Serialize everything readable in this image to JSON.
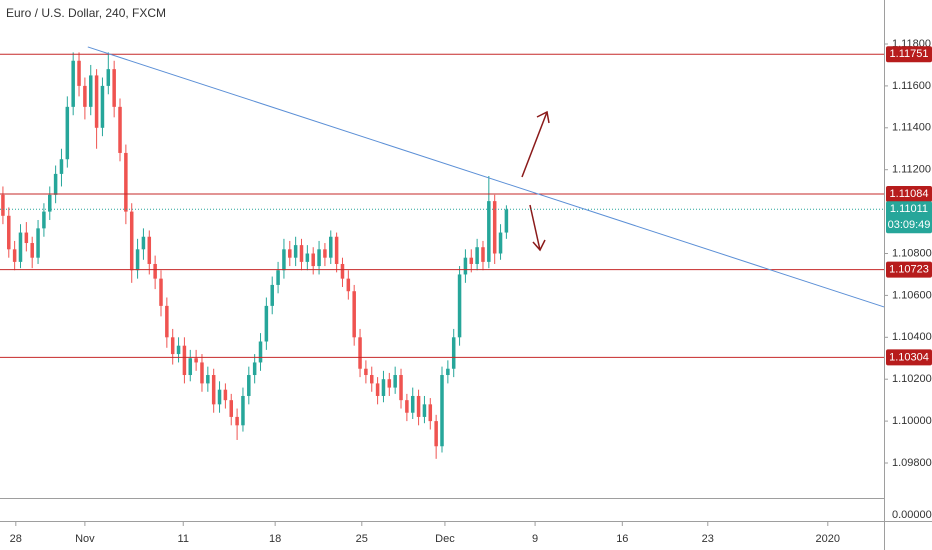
{
  "chart_data": {
    "type": "candlestick",
    "title": "Euro / U.S. Dollar, 240, FXCM",
    "up_color": "#26a69a",
    "down_color": "#ef5350",
    "level_color": "#c62828",
    "trend_color": "#5b8fd6",
    "xlim": [
      -0.5,
      150.5
    ],
    "ylim": [
      1.09633,
      1.1201
    ],
    "xticks": [
      {
        "value": 2.2,
        "label": "28"
      },
      {
        "value": 14.0,
        "label": "Nov"
      },
      {
        "value": 30.8,
        "label": "11"
      },
      {
        "value": 46.5,
        "label": "18"
      },
      {
        "value": 61.3,
        "label": "25"
      },
      {
        "value": 75.5,
        "label": "Dec"
      },
      {
        "value": 90.9,
        "label": "9"
      },
      {
        "value": 105.8,
        "label": "16"
      },
      {
        "value": 120.4,
        "label": "23"
      },
      {
        "value": 140.9,
        "label": "2020"
      }
    ],
    "yticks": [
      {
        "value": 1.118,
        "label": "1.11800"
      },
      {
        "value": 1.116,
        "label": "1.11600"
      },
      {
        "value": 1.114,
        "label": "1.11400"
      },
      {
        "value": 1.112,
        "label": "1.11200"
      },
      {
        "value": 1.108,
        "label": "1.10800"
      },
      {
        "value": 1.106,
        "label": "1.10600"
      },
      {
        "value": 1.104,
        "label": "1.10400"
      },
      {
        "value": 1.102,
        "label": "1.10200"
      },
      {
        "value": 1.1,
        "label": "1.10000"
      },
      {
        "value": 1.098,
        "label": "1.09800"
      }
    ],
    "lower_pane_tick": {
      "value": 0,
      "label": "0.00000"
    },
    "levels": [
      1.11751,
      1.11084,
      1.10723,
      1.10304
    ],
    "last_price": 1.11011,
    "countdown": "03:09:49",
    "trendline": {
      "x": [
        14.5,
        150.5
      ],
      "y": [
        1.11786,
        1.10545
      ]
    },
    "candles": [
      [
        1.1108,
        1.1112,
        1.1094,
        1.1098
      ],
      [
        1.1098,
        1.1102,
        1.1078,
        1.1082
      ],
      [
        1.1082,
        1.1086,
        1.1072,
        1.1076
      ],
      [
        1.1076,
        1.1094,
        1.1073,
        1.109
      ],
      [
        1.109,
        1.1095,
        1.1081,
        1.1085
      ],
      [
        1.1085,
        1.1088,
        1.1073,
        1.1078
      ],
      [
        1.1078,
        1.1096,
        1.1075,
        1.1092
      ],
      [
        1.1092,
        1.1104,
        1.1088,
        1.11
      ],
      [
        1.11,
        1.1112,
        1.1096,
        1.1108
      ],
      [
        1.1108,
        1.1122,
        1.1104,
        1.1118
      ],
      [
        1.1118,
        1.113,
        1.1112,
        1.1125
      ],
      [
        1.1125,
        1.1155,
        1.1121,
        1.115
      ],
      [
        1.115,
        1.1176,
        1.1146,
        1.1172
      ],
      [
        1.1172,
        1.1176,
        1.1155,
        1.116
      ],
      [
        1.116,
        1.1164,
        1.1144,
        1.115
      ],
      [
        1.115,
        1.117,
        1.1146,
        1.1165
      ],
      [
        1.1165,
        1.1168,
        1.113,
        1.114
      ],
      [
        1.114,
        1.1164,
        1.1136,
        1.116
      ],
      [
        1.116,
        1.1176,
        1.1156,
        1.1168
      ],
      [
        1.1168,
        1.1172,
        1.1145,
        1.115
      ],
      [
        1.115,
        1.1154,
        1.1124,
        1.1128
      ],
      [
        1.1128,
        1.1132,
        1.1094,
        1.11
      ],
      [
        1.11,
        1.1104,
        1.1066,
        1.1072
      ],
      [
        1.1072,
        1.1087,
        1.1068,
        1.1082
      ],
      [
        1.1082,
        1.1092,
        1.1077,
        1.1088
      ],
      [
        1.1088,
        1.1091,
        1.107,
        1.1075
      ],
      [
        1.1075,
        1.1079,
        1.1063,
        1.1068
      ],
      [
        1.1068,
        1.1072,
        1.105,
        1.1055
      ],
      [
        1.1055,
        1.1059,
        1.1035,
        1.104
      ],
      [
        1.104,
        1.1044,
        1.1027,
        1.1032
      ],
      [
        1.1032,
        1.104,
        1.1028,
        1.1036
      ],
      [
        1.1036,
        1.104,
        1.1018,
        1.1022
      ],
      [
        1.1022,
        1.1034,
        1.1019,
        1.103
      ],
      [
        1.103,
        1.1034,
        1.1024,
        1.1028
      ],
      [
        1.1028,
        1.1032,
        1.1014,
        1.1018
      ],
      [
        1.1018,
        1.1026,
        1.1014,
        1.1022
      ],
      [
        1.1022,
        1.1025,
        1.1004,
        1.1008
      ],
      [
        1.1008,
        1.1019,
        1.1004,
        1.1015
      ],
      [
        1.1015,
        1.1018,
        1.1006,
        1.101
      ],
      [
        1.101,
        1.1013,
        1.0998,
        1.1002
      ],
      [
        1.1002,
        1.1006,
        1.0991,
        1.0998
      ],
      [
        1.0998,
        1.1016,
        1.0995,
        1.1012
      ],
      [
        1.1012,
        1.1026,
        1.1008,
        1.1022
      ],
      [
        1.1022,
        1.1032,
        1.1018,
        1.1028
      ],
      [
        1.1028,
        1.1042,
        1.1024,
        1.1038
      ],
      [
        1.1038,
        1.1059,
        1.1034,
        1.1055
      ],
      [
        1.1055,
        1.1069,
        1.1051,
        1.1065
      ],
      [
        1.1065,
        1.1076,
        1.1061,
        1.1072
      ],
      [
        1.1072,
        1.1087,
        1.1068,
        1.1082
      ],
      [
        1.1082,
        1.1086,
        1.1074,
        1.1078
      ],
      [
        1.1078,
        1.1088,
        1.1074,
        1.1084
      ],
      [
        1.1084,
        1.1087,
        1.1072,
        1.1076
      ],
      [
        1.1076,
        1.1084,
        1.1072,
        1.108
      ],
      [
        1.108,
        1.1083,
        1.107,
        1.1074
      ],
      [
        1.1074,
        1.1086,
        1.107,
        1.1082
      ],
      [
        1.1082,
        1.1085,
        1.1074,
        1.1078
      ],
      [
        1.1078,
        1.1091,
        1.1075,
        1.1088
      ],
      [
        1.1088,
        1.109,
        1.1071,
        1.1075
      ],
      [
        1.1075,
        1.1078,
        1.1064,
        1.1068
      ],
      [
        1.1068,
        1.1072,
        1.1058,
        1.1062
      ],
      [
        1.1062,
        1.1065,
        1.1036,
        1.104
      ],
      [
        1.104,
        1.1044,
        1.1021,
        1.1025
      ],
      [
        1.1025,
        1.1029,
        1.1018,
        1.1022
      ],
      [
        1.1022,
        1.1026,
        1.1014,
        1.1018
      ],
      [
        1.1018,
        1.1021,
        1.1008,
        1.1012
      ],
      [
        1.1012,
        1.1024,
        1.1009,
        1.102
      ],
      [
        1.102,
        1.1023,
        1.1012,
        1.1016
      ],
      [
        1.1016,
        1.1026,
        1.1013,
        1.1022
      ],
      [
        1.1022,
        1.1025,
        1.1006,
        1.101
      ],
      [
        1.101,
        1.1013,
        1.1,
        1.1004
      ],
      [
        1.1004,
        1.1016,
        1.1001,
        1.1012
      ],
      [
        1.1012,
        1.1015,
        1.0998,
        1.1002
      ],
      [
        1.1002,
        1.1012,
        1.0999,
        1.1008
      ],
      [
        1.1008,
        1.1011,
        1.0996,
        1.1
      ],
      [
        1.1,
        1.1003,
        1.0982,
        1.0988
      ],
      [
        1.0988,
        1.1026,
        1.0985,
        1.1022
      ],
      [
        1.1022,
        1.1029,
        1.1018,
        1.1025
      ],
      [
        1.1025,
        1.1044,
        1.1021,
        1.104
      ],
      [
        1.104,
        1.1074,
        1.1036,
        1.107
      ],
      [
        1.107,
        1.1082,
        1.1066,
        1.1078
      ],
      [
        1.1078,
        1.1082,
        1.1071,
        1.1075
      ],
      [
        1.1075,
        1.1087,
        1.1072,
        1.1083
      ],
      [
        1.1083,
        1.1086,
        1.1072,
        1.1076
      ],
      [
        1.1076,
        1.1117,
        1.1073,
        1.1105
      ],
      [
        1.1105,
        1.1108,
        1.1075,
        1.108
      ],
      [
        1.108,
        1.1094,
        1.1077,
        1.109
      ],
      [
        1.109,
        1.1103,
        1.1087,
        1.1101
      ]
    ]
  }
}
